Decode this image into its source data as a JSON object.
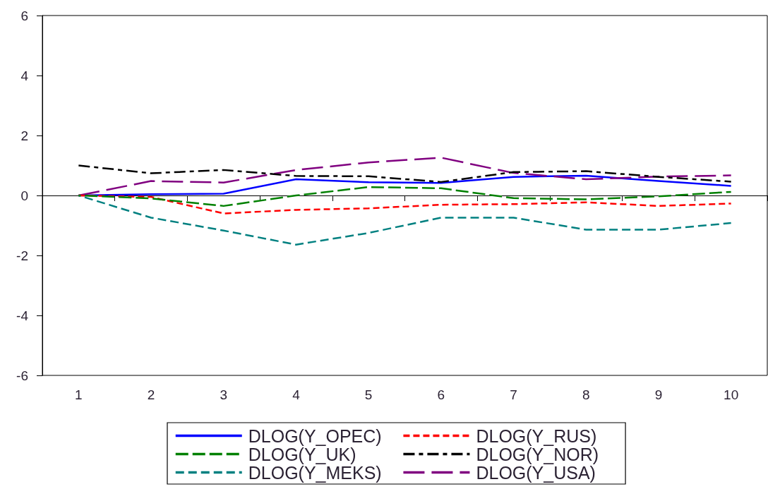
{
  "chart_data": {
    "type": "line",
    "categories": [
      "1",
      "2",
      "3",
      "4",
      "5",
      "6",
      "7",
      "8",
      "9",
      "10"
    ],
    "ylim": [
      -6,
      6
    ],
    "yticks": [
      -6,
      -4,
      -2,
      0,
      2,
      4,
      6
    ],
    "grid": false,
    "legend": "bottom",
    "marker": "none",
    "ref_lines": [
      {
        "axis": "y",
        "value": 0,
        "color": "#000000"
      }
    ],
    "series": [
      {
        "name": "DLOG(Y_OPEC)",
        "color": "#0000ff",
        "line_style": "solid",
        "values": [
          0,
          0.04,
          0.06,
          0.54,
          0.44,
          0.42,
          0.62,
          0.66,
          0.48,
          0.32
        ]
      },
      {
        "name": "DLOG(Y_UK)",
        "color": "#008000",
        "line_style": "dashed",
        "values": [
          0,
          -0.1,
          -0.35,
          0.0,
          0.28,
          0.24,
          -0.09,
          -0.13,
          -0.03,
          0.12
        ]
      },
      {
        "name": "DLOG(Y_MEKS)",
        "color": "#008080",
        "line_style": "dashed",
        "values": [
          0,
          -0.74,
          -1.17,
          -1.64,
          -1.25,
          -0.74,
          -0.74,
          -1.14,
          -1.14,
          -0.92
        ]
      },
      {
        "name": "DLOG(Y_RUS)",
        "color": "#ff0000",
        "line_style": "dashed",
        "values": [
          0,
          -0.05,
          -0.6,
          -0.48,
          -0.43,
          -0.31,
          -0.29,
          -0.23,
          -0.35,
          -0.27
        ]
      },
      {
        "name": "DLOG(Y_NOR)",
        "color": "#000000",
        "line_style": "dashed",
        "values": [
          1.0,
          0.74,
          0.85,
          0.65,
          0.64,
          0.45,
          0.78,
          0.81,
          0.62,
          0.46
        ]
      },
      {
        "name": "DLOG(Y_USA)",
        "color": "#800080",
        "line_style": "dashed",
        "values": [
          0,
          0.48,
          0.43,
          0.85,
          1.1,
          1.26,
          0.75,
          0.54,
          0.63,
          0.67
        ]
      }
    ]
  }
}
